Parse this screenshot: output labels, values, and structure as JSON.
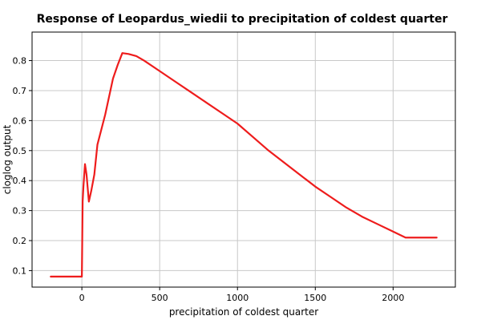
{
  "chart_data": {
    "type": "line",
    "title": "Response of Leopardus_wiedii to precipitation of coldest quarter",
    "xlabel": "precipitation of coldest quarter",
    "ylabel": "cloglog output",
    "xlim": [
      -320,
      2400
    ],
    "ylim": [
      0.045,
      0.895
    ],
    "x_ticks": [
      0,
      500,
      1000,
      1500,
      2000
    ],
    "y_ticks": [
      0.1,
      0.2,
      0.3,
      0.4,
      0.5,
      0.6,
      0.7,
      0.8
    ],
    "grid": true,
    "legend": "none",
    "series": [
      {
        "color": "#ee1c1c",
        "x": [
          -200,
          -100,
          0,
          5,
          10,
          20,
          30,
          45,
          60,
          80,
          100,
          150,
          200,
          230,
          260,
          300,
          350,
          400,
          500,
          600,
          700,
          800,
          900,
          1000,
          1100,
          1200,
          1300,
          1400,
          1500,
          1600,
          1700,
          1800,
          1900,
          2000,
          2080,
          2200,
          2280
        ],
        "y": [
          0.08,
          0.08,
          0.08,
          0.33,
          0.38,
          0.455,
          0.42,
          0.33,
          0.365,
          0.42,
          0.52,
          0.62,
          0.74,
          0.785,
          0.825,
          0.822,
          0.815,
          0.8,
          0.765,
          0.73,
          0.695,
          0.66,
          0.625,
          0.59,
          0.545,
          0.5,
          0.46,
          0.42,
          0.38,
          0.345,
          0.31,
          0.28,
          0.255,
          0.23,
          0.21,
          0.21,
          0.21
        ]
      }
    ]
  }
}
